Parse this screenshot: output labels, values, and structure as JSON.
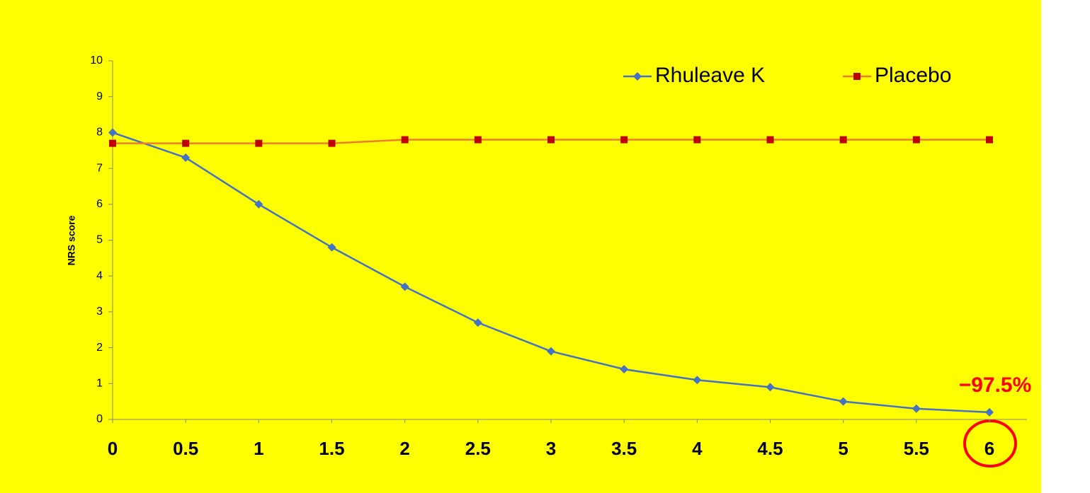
{
  "chart_data": {
    "type": "line",
    "y_label": "NRS score",
    "annotation": "−97.5%",
    "x": [
      0,
      0.5,
      1,
      1.5,
      2,
      2.5,
      3,
      3.5,
      4,
      4.5,
      5,
      5.5,
      6
    ],
    "xlim": [
      0,
      6
    ],
    "xticks": [
      0,
      0.5,
      1,
      1.5,
      2,
      2.5,
      3,
      3.5,
      4,
      4.5,
      5,
      5.5,
      6
    ],
    "ylim": [
      0,
      10
    ],
    "yticks": [
      0,
      1,
      2,
      3,
      4,
      5,
      6,
      7,
      8,
      9,
      10
    ],
    "grid": false,
    "legend": "top-right",
    "series": [
      {
        "name": "Rhuleave K",
        "color": "#4472c4",
        "marker": "diamond",
        "values": [
          8,
          7.3,
          6.0,
          4.8,
          3.7,
          2.7,
          1.9,
          1.4,
          1.1,
          0.9,
          0.5,
          0.3,
          0.2
        ]
      },
      {
        "name": "Placebo",
        "color": "#c00000",
        "line_color": "#ed7d31",
        "marker": "square",
        "values": [
          7.7,
          7.7,
          7.7,
          7.7,
          7.8,
          7.8,
          7.8,
          7.8,
          7.8,
          7.8,
          7.8,
          7.8,
          7.8
        ]
      }
    ]
  }
}
